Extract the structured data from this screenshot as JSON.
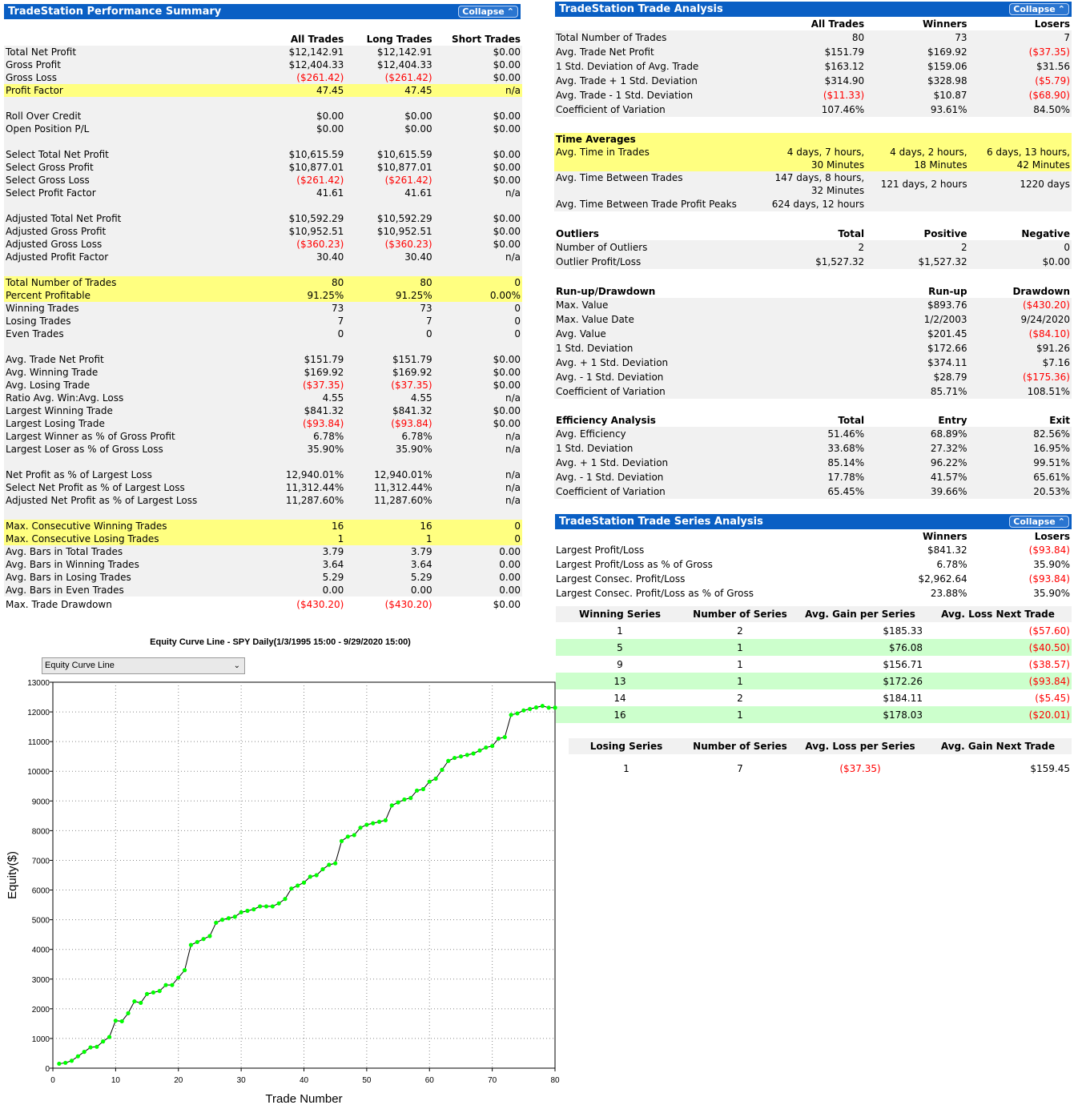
{
  "perf": {
    "title": "TradeStation Performance Summary",
    "collapse": "Collapse",
    "headers": [
      "",
      "All Trades",
      "Long Trades",
      "Short Trades"
    ],
    "groups": [
      {
        "rows": [
          {
            "label": "Total Net Profit",
            "v": [
              "$12,142.91",
              "$12,142.91",
              "$0.00"
            ]
          },
          {
            "label": "Gross Profit",
            "v": [
              "$12,404.33",
              "$12,404.33",
              "$0.00"
            ]
          },
          {
            "label": "Gross Loss",
            "v": [
              "($261.42)",
              "($261.42)",
              "$0.00"
            ]
          },
          {
            "label": "Profit Factor",
            "v": [
              "47.45",
              "47.45",
              "n/a"
            ],
            "hl": true
          }
        ]
      },
      {
        "rows": [
          {
            "label": "Roll Over Credit",
            "v": [
              "$0.00",
              "$0.00",
              "$0.00"
            ]
          },
          {
            "label": "Open Position P/L",
            "v": [
              "$0.00",
              "$0.00",
              "$0.00"
            ]
          }
        ]
      },
      {
        "rows": [
          {
            "label": "Select Total Net Profit",
            "v": [
              "$10,615.59",
              "$10,615.59",
              "$0.00"
            ]
          },
          {
            "label": "Select Gross Profit",
            "v": [
              "$10,877.01",
              "$10,877.01",
              "$0.00"
            ]
          },
          {
            "label": "Select Gross Loss",
            "v": [
              "($261.42)",
              "($261.42)",
              "$0.00"
            ]
          },
          {
            "label": "Select Profit Factor",
            "v": [
              "41.61",
              "41.61",
              "n/a"
            ]
          }
        ]
      },
      {
        "rows": [
          {
            "label": "Adjusted Total Net Profit",
            "v": [
              "$10,592.29",
              "$10,592.29",
              "$0.00"
            ]
          },
          {
            "label": "Adjusted Gross Profit",
            "v": [
              "$10,952.51",
              "$10,952.51",
              "$0.00"
            ]
          },
          {
            "label": "Adjusted Gross Loss",
            "v": [
              "($360.23)",
              "($360.23)",
              "$0.00"
            ]
          },
          {
            "label": "Adjusted Profit Factor",
            "v": [
              "30.40",
              "30.40",
              "n/a"
            ]
          }
        ]
      },
      {
        "rows": [
          {
            "label": "Total Number of Trades",
            "v": [
              "80",
              "80",
              "0"
            ],
            "hl": true
          },
          {
            "label": "Percent Profitable",
            "v": [
              "91.25%",
              "91.25%",
              "0.00%"
            ],
            "hl": true
          },
          {
            "label": "Winning Trades",
            "v": [
              "73",
              "73",
              "0"
            ]
          },
          {
            "label": "Losing Trades",
            "v": [
              "7",
              "7",
              "0"
            ]
          },
          {
            "label": "Even Trades",
            "v": [
              "0",
              "0",
              "0"
            ]
          }
        ]
      },
      {
        "rows": [
          {
            "label": "Avg. Trade Net Profit",
            "v": [
              "$151.79",
              "$151.79",
              "$0.00"
            ]
          },
          {
            "label": "Avg. Winning Trade",
            "v": [
              "$169.92",
              "$169.92",
              "$0.00"
            ]
          },
          {
            "label": "Avg. Losing Trade",
            "v": [
              "($37.35)",
              "($37.35)",
              "$0.00"
            ]
          },
          {
            "label": "Ratio Avg. Win:Avg. Loss",
            "v": [
              "4.55",
              "4.55",
              "n/a"
            ]
          },
          {
            "label": "Largest Winning Trade",
            "v": [
              "$841.32",
              "$841.32",
              "$0.00"
            ]
          },
          {
            "label": "Largest Losing Trade",
            "v": [
              "($93.84)",
              "($93.84)",
              "$0.00"
            ]
          },
          {
            "label": "Largest Winner as % of Gross Profit",
            "v": [
              "6.78%",
              "6.78%",
              "n/a"
            ]
          },
          {
            "label": "Largest Loser as % of Gross Loss",
            "v": [
              "35.90%",
              "35.90%",
              "n/a"
            ]
          }
        ]
      },
      {
        "rows": [
          {
            "label": "Net Profit as % of Largest Loss",
            "v": [
              "12,940.01%",
              "12,940.01%",
              "n/a"
            ]
          },
          {
            "label": "Select Net Profit as % of Largest Loss",
            "v": [
              "11,312.44%",
              "11,312.44%",
              "n/a"
            ]
          },
          {
            "label": "Adjusted Net Profit as % of Largest Loss",
            "v": [
              "11,287.60%",
              "11,287.60%",
              "n/a"
            ]
          }
        ]
      },
      {
        "rows": [
          {
            "label": "Max. Consecutive Winning Trades",
            "v": [
              "16",
              "16",
              "0"
            ],
            "hl": true
          },
          {
            "label": "Max. Consecutive Losing Trades",
            "v": [
              "1",
              "1",
              "0"
            ],
            "hl": true
          },
          {
            "label": "Avg. Bars in Total Trades",
            "v": [
              "3.79",
              "3.79",
              "0.00"
            ]
          },
          {
            "label": "Avg. Bars in Winning Trades",
            "v": [
              "3.64",
              "3.64",
              "0.00"
            ]
          },
          {
            "label": "Avg. Bars in Losing Trades",
            "v": [
              "5.29",
              "5.29",
              "0.00"
            ]
          },
          {
            "label": "Avg. Bars in Even Trades",
            "v": [
              "0.00",
              "0.00",
              "0.00"
            ]
          },
          {
            "label": "Max. Trade Drawdown",
            "v": [
              "($430.20)",
              "($430.20)",
              "$0.00"
            ],
            "plain": true
          }
        ]
      }
    ]
  },
  "trade": {
    "title": "TradeStation Trade Analysis",
    "collapse": "Collapse",
    "headers": [
      "",
      "All Trades",
      "Winners",
      "Losers"
    ],
    "rows": [
      {
        "label": "Total Number of Trades",
        "v": [
          "80",
          "73",
          "7"
        ]
      },
      {
        "label": "Avg. Trade Net Profit",
        "v": [
          "$151.79",
          "$169.92",
          "($37.35)"
        ]
      },
      {
        "label": "1 Std. Deviation of Avg. Trade",
        "v": [
          "$163.12",
          "$159.06",
          "$31.56"
        ]
      },
      {
        "label": "Avg. Trade + 1 Std. Deviation",
        "v": [
          "$314.90",
          "$328.98",
          "($5.79)"
        ]
      },
      {
        "label": "Avg. Trade - 1 Std. Deviation",
        "v": [
          "($11.33)",
          "$10.87",
          "($68.90)"
        ]
      },
      {
        "label": "Coefficient of Variation",
        "v": [
          "107.46%",
          "93.61%",
          "84.50%"
        ]
      }
    ],
    "time": {
      "title": "Time Averages",
      "in_trades": {
        "label": "Avg. Time in Trades",
        "v": [
          [
            "4 days, 7 hours,",
            "30 Minutes"
          ],
          [
            "4 days, 2 hours,",
            "18 Minutes"
          ],
          [
            "6 days, 13 hours,",
            "42 Minutes"
          ]
        ]
      },
      "between": {
        "label": "Avg. Time Between Trades",
        "v": [
          [
            "147 days, 8 hours,",
            "32 Minutes"
          ],
          [
            "121 days, 2 hours"
          ],
          [
            "1220 days"
          ]
        ]
      },
      "peaks": {
        "label": "Avg. Time Between Trade Profit Peaks",
        "v": "624 days, 12 hours"
      }
    },
    "outliers": {
      "headers": [
        "Outliers",
        "Total",
        "Positive",
        "Negative"
      ],
      "rows": [
        {
          "label": "Number of Outliers",
          "v": [
            "2",
            "2",
            "0"
          ]
        },
        {
          "label": "Outlier Profit/Loss",
          "v": [
            "$1,527.32",
            "$1,527.32",
            "$0.00"
          ]
        }
      ]
    },
    "runup": {
      "headers": [
        "Run-up/Drawdown",
        "",
        "Run-up",
        "Drawdown"
      ],
      "rows": [
        {
          "label": "Max. Value",
          "v": [
            "",
            "$893.76",
            "($430.20)"
          ]
        },
        {
          "label": "Max. Value Date",
          "v": [
            "",
            "1/2/2003",
            "9/24/2020"
          ]
        },
        {
          "label": "Avg. Value",
          "v": [
            "",
            "$201.45",
            "($84.10)"
          ]
        },
        {
          "label": "1 Std. Deviation",
          "v": [
            "",
            "$172.66",
            "$91.26"
          ]
        },
        {
          "label": "Avg. + 1 Std. Deviation",
          "v": [
            "",
            "$374.11",
            "$7.16"
          ]
        },
        {
          "label": "Avg. - 1 Std. Deviation",
          "v": [
            "",
            "$28.79",
            "($175.36)"
          ]
        },
        {
          "label": "Coefficient of Variation",
          "v": [
            "",
            "85.71%",
            "108.51%"
          ]
        }
      ]
    },
    "eff": {
      "headers": [
        "Efficiency Analysis",
        "Total",
        "Entry",
        "Exit"
      ],
      "rows": [
        {
          "label": "Avg. Efficiency",
          "v": [
            "51.46%",
            "68.89%",
            "82.56%"
          ]
        },
        {
          "label": "1 Std. Deviation",
          "v": [
            "33.68%",
            "27.32%",
            "16.95%"
          ]
        },
        {
          "label": "Avg. + 1 Std. Deviation",
          "v": [
            "85.14%",
            "96.22%",
            "99.51%"
          ]
        },
        {
          "label": "Avg. - 1 Std. Deviation",
          "v": [
            "17.78%",
            "41.57%",
            "65.61%"
          ]
        },
        {
          "label": "Coefficient of Variation",
          "v": [
            "65.45%",
            "39.66%",
            "20.53%"
          ]
        }
      ]
    }
  },
  "series": {
    "title": "TradeStation Trade Series Analysis",
    "collapse": "Collapse",
    "headers": [
      "",
      "Winners",
      "Losers"
    ],
    "rows": [
      {
        "label": "Largest Profit/Loss",
        "v": [
          "$841.32",
          "($93.84)"
        ]
      },
      {
        "label": "Largest Profit/Loss as % of Gross",
        "v": [
          "6.78%",
          "35.90%"
        ]
      },
      {
        "label": "Largest Consec. Profit/Loss",
        "v": [
          "$2,962.64",
          "($93.84)"
        ]
      },
      {
        "label": "Largest Consec. Profit/Loss as % of Gross",
        "v": [
          "23.88%",
          "35.90%"
        ]
      }
    ],
    "win_headers": [
      "Winning Series",
      "Number of Series",
      "Avg. Gain per Series",
      "Avg. Loss Next Trade"
    ],
    "win_rows": [
      [
        "1",
        "2",
        "$185.33",
        "($57.60)"
      ],
      [
        "5",
        "1",
        "$76.08",
        "($40.50)"
      ],
      [
        "9",
        "1",
        "$156.71",
        "($38.57)"
      ],
      [
        "13",
        "1",
        "$172.26",
        "($93.84)"
      ],
      [
        "14",
        "2",
        "$184.11",
        "($5.45)"
      ],
      [
        "16",
        "1",
        "$178.03",
        "($20.01)"
      ]
    ],
    "lose_headers": [
      "Losing Series",
      "Number of Series",
      "Avg. Loss per Series",
      "Avg. Gain Next Trade"
    ],
    "lose_rows": [
      [
        "1",
        "7",
        "($37.35)",
        "$159.45"
      ]
    ]
  },
  "equity": {
    "dropdown": "Equity Curve Line",
    "chart_data": {
      "type": "line",
      "title": "Equity Curve Line - SPY Daily(1/3/1995 15:00 - 9/29/2020 15:00)",
      "xlabel": "Trade Number",
      "ylabel": "Equity($)",
      "xlim": [
        0,
        80
      ],
      "ylim": [
        0,
        13000
      ],
      "xticks": [
        0,
        10,
        20,
        30,
        40,
        50,
        60,
        70,
        80
      ],
      "yticks": [
        0,
        1000,
        2000,
        3000,
        4000,
        5000,
        6000,
        7000,
        8000,
        9000,
        10000,
        11000,
        12000,
        13000
      ],
      "grid": true,
      "marker_color": "#00ff00",
      "line_color": "#000000",
      "x": [
        1,
        2,
        3,
        4,
        5,
        6,
        7,
        8,
        9,
        10,
        11,
        12,
        13,
        14,
        15,
        16,
        17,
        18,
        19,
        20,
        21,
        22,
        23,
        24,
        25,
        26,
        27,
        28,
        29,
        30,
        31,
        32,
        33,
        34,
        35,
        36,
        37,
        38,
        39,
        40,
        41,
        42,
        43,
        44,
        45,
        46,
        47,
        48,
        49,
        50,
        51,
        52,
        53,
        54,
        55,
        56,
        57,
        58,
        59,
        60,
        61,
        62,
        63,
        64,
        65,
        66,
        67,
        68,
        69,
        70,
        71,
        72,
        73,
        74,
        75,
        76,
        77,
        78,
        79,
        80
      ],
      "y": [
        150,
        180,
        250,
        400,
        550,
        700,
        720,
        900,
        1050,
        1600,
        1580,
        1850,
        2250,
        2200,
        2500,
        2550,
        2600,
        2800,
        2800,
        3050,
        3300,
        4150,
        4250,
        4350,
        4450,
        4900,
        5000,
        5050,
        5100,
        5250,
        5300,
        5350,
        5450,
        5450,
        5450,
        5550,
        5700,
        6050,
        6150,
        6250,
        6450,
        6500,
        6700,
        6850,
        6900,
        7650,
        7800,
        7850,
        8100,
        8200,
        8250,
        8300,
        8350,
        8850,
        8950,
        9050,
        9100,
        9350,
        9400,
        9650,
        9750,
        10050,
        10350,
        10450,
        10500,
        10550,
        10600,
        10700,
        10800,
        10850,
        11100,
        11150,
        11900,
        11950,
        12050,
        12100,
        12150,
        12200,
        12142,
        12143
      ]
    }
  }
}
